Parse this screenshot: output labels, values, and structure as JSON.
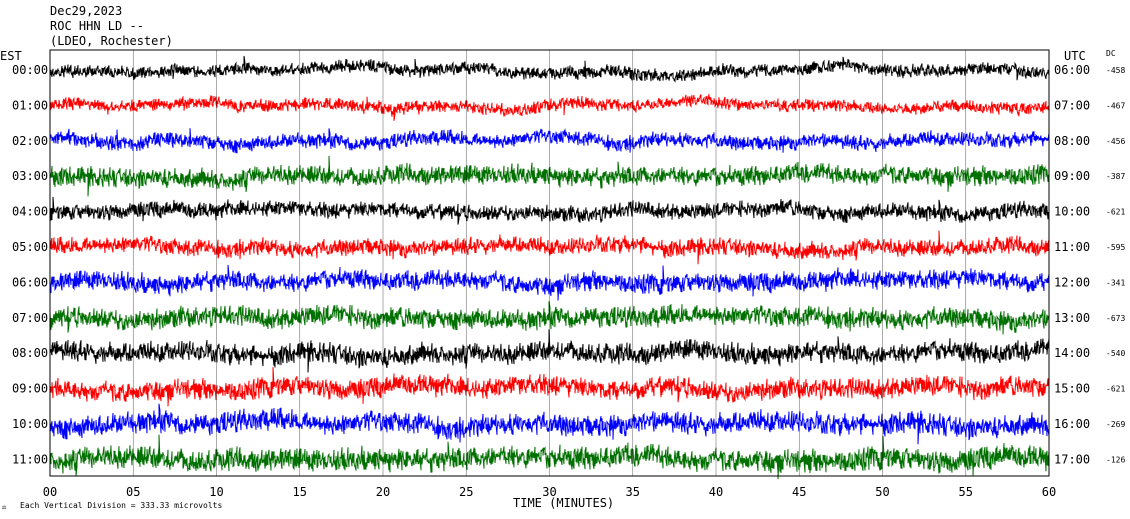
{
  "header": {
    "date": "Dec29,2023",
    "station": "ROC HHN LD --",
    "network": "(LDEO, Rochester)"
  },
  "left_tz": "EST",
  "right_tz": "UTC",
  "dc_label": "DC",
  "footer_note": "Each Vertical Division =  333.33 microvolts",
  "chart_data": {
    "type": "line",
    "title": "",
    "xlabel": "TIME (MINUTES)",
    "ylabel": "",
    "x_ticks": [
      "00",
      "05",
      "10",
      "15",
      "20",
      "25",
      "30",
      "35",
      "40",
      "45",
      "50",
      "55",
      "60"
    ],
    "xlim": [
      0,
      60
    ],
    "trace_colors": [
      "#000000",
      "#ff0000",
      "#0000ff",
      "#007000"
    ],
    "rows": [
      {
        "est": "00:00",
        "utc": "06:00",
        "dc": "-458",
        "amp": 0.55
      },
      {
        "est": "01:00",
        "utc": "07:00",
        "dc": "-467",
        "amp": 0.55
      },
      {
        "est": "02:00",
        "utc": "08:00",
        "dc": "-456",
        "amp": 0.65
      },
      {
        "est": "03:00",
        "utc": "09:00",
        "dc": "-387",
        "amp": 0.85
      },
      {
        "est": "04:00",
        "utc": "10:00",
        "dc": "-621",
        "amp": 0.7
      },
      {
        "est": "05:00",
        "utc": "11:00",
        "dc": "-595",
        "amp": 0.75
      },
      {
        "est": "06:00",
        "utc": "12:00",
        "dc": "-341",
        "amp": 0.85
      },
      {
        "est": "07:00",
        "utc": "13:00",
        "dc": "-673",
        "amp": 0.9
      },
      {
        "est": "08:00",
        "utc": "14:00",
        "dc": "-540",
        "amp": 0.9
      },
      {
        "est": "09:00",
        "utc": "15:00",
        "dc": "-621",
        "amp": 0.9
      },
      {
        "est": "10:00",
        "utc": "16:00",
        "dc": "-269",
        "amp": 0.95
      },
      {
        "est": "11:00",
        "utc": "17:00",
        "dc": "-126",
        "amp": 1.0
      }
    ]
  }
}
